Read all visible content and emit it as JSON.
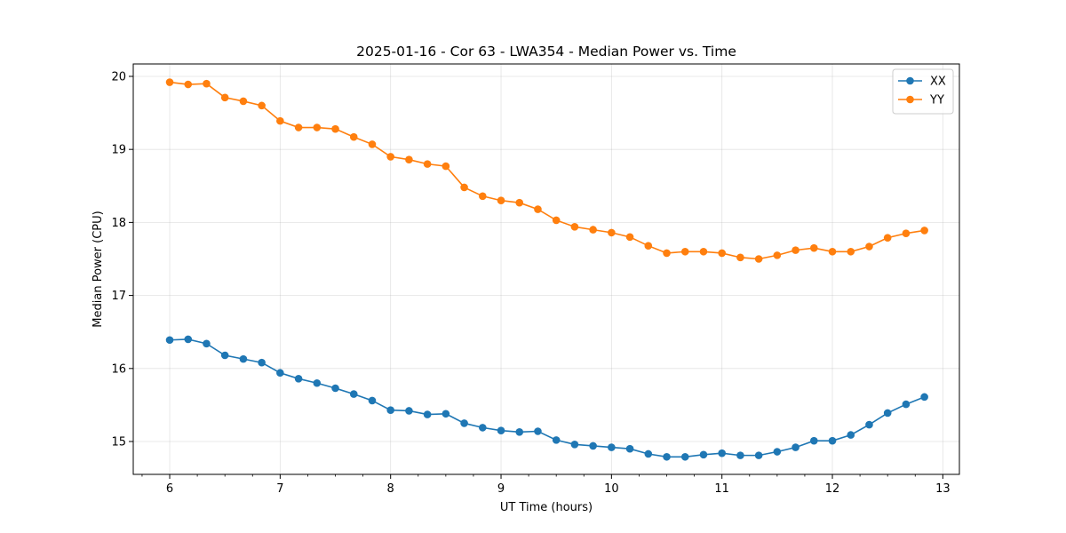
{
  "chart_data": {
    "type": "line",
    "title": "2025-01-16 - Cor 63 - LWA354 - Median Power vs. Time",
    "xlabel": "UT Time (hours)",
    "ylabel": "Median Power (CPU)",
    "xlim": [
      5.67,
      13.15
    ],
    "ylim": [
      14.55,
      20.17
    ],
    "xticks": [
      6,
      7,
      8,
      9,
      10,
      11,
      12,
      13
    ],
    "yticks": [
      15,
      16,
      17,
      18,
      19,
      20
    ],
    "grid": true,
    "legend_position": "top-right",
    "x": [
      6.0,
      6.1667,
      6.3333,
      6.5,
      6.6667,
      6.8333,
      7.0,
      7.1667,
      7.3333,
      7.5,
      7.6667,
      7.8333,
      8.0,
      8.1667,
      8.3333,
      8.5,
      8.6667,
      8.8333,
      9.0,
      9.1667,
      9.3333,
      9.5,
      9.6667,
      9.8333,
      10.0,
      10.1667,
      10.3333,
      10.5,
      10.6667,
      10.8333,
      11.0,
      11.1667,
      11.3333,
      11.5,
      11.6667,
      11.8333,
      12.0,
      12.1667,
      12.3333,
      12.5,
      12.6667,
      12.8333
    ],
    "series": [
      {
        "name": "XX",
        "color": "#1f77b4",
        "values": [
          16.39,
          16.4,
          16.34,
          16.18,
          16.13,
          16.08,
          15.94,
          15.86,
          15.8,
          15.73,
          15.65,
          15.56,
          15.43,
          15.42,
          15.37,
          15.38,
          15.25,
          15.19,
          15.15,
          15.13,
          15.14,
          15.02,
          14.96,
          14.94,
          14.92,
          14.9,
          14.83,
          14.79,
          14.79,
          14.82,
          14.84,
          14.81,
          14.81,
          14.86,
          14.92,
          15.01,
          15.01,
          15.09,
          15.23,
          15.39,
          15.51,
          15.61
        ]
      },
      {
        "name": "YY",
        "color": "#ff7f0e",
        "values": [
          19.92,
          19.89,
          19.9,
          19.71,
          19.66,
          19.6,
          19.39,
          19.3,
          19.3,
          19.28,
          19.17,
          19.07,
          18.9,
          18.86,
          18.8,
          18.77,
          18.48,
          18.36,
          18.3,
          18.27,
          18.18,
          18.03,
          17.94,
          17.9,
          17.86,
          17.8,
          17.68,
          17.58,
          17.6,
          17.6,
          17.58,
          17.52,
          17.5,
          17.55,
          17.62,
          17.65,
          17.6,
          17.6,
          17.67,
          17.79,
          17.85,
          17.89
        ]
      }
    ]
  }
}
